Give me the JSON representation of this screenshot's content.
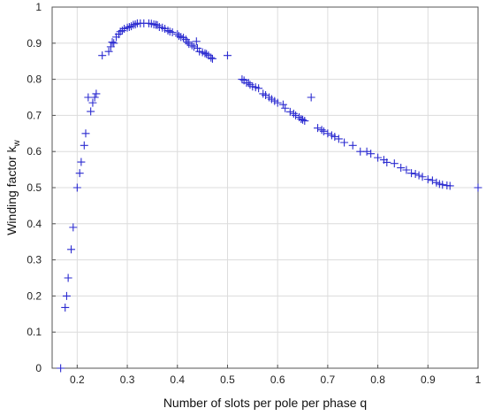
{
  "chart_data": {
    "type": "scatter",
    "xlabel": "Number of slots per pole per phase q",
    "ylabel_main": "Winding factor k",
    "ylabel_sub": "w",
    "xlim": [
      0.15,
      1.0
    ],
    "ylim": [
      0,
      1.0
    ],
    "grid": true,
    "marker": "+",
    "marker_color": "#2b2bd0",
    "x_ticks": [
      0.2,
      0.3,
      0.4,
      0.5,
      0.6,
      0.7,
      0.8,
      0.9,
      1.0
    ],
    "x_tick_labels": [
      "0.2",
      "0.3",
      "0.4",
      "0.5",
      "0.6",
      "0.7",
      "0.8",
      "0.9",
      "1"
    ],
    "y_ticks": [
      0,
      0.1,
      0.2,
      0.3,
      0.4,
      0.5,
      0.6,
      0.7,
      0.8,
      0.9,
      1.0
    ],
    "y_tick_labels": [
      "0",
      "0.1",
      "0.2",
      "0.3",
      "0.4",
      "0.5",
      "0.6",
      "0.7",
      "0.8",
      "0.9",
      "1"
    ],
    "points": [
      [
        0.167,
        0.0
      ],
      [
        0.176,
        0.168
      ],
      [
        0.179,
        0.2
      ],
      [
        0.182,
        0.25
      ],
      [
        0.188,
        0.329
      ],
      [
        0.192,
        0.39
      ],
      [
        0.2,
        0.5
      ],
      [
        0.205,
        0.54
      ],
      [
        0.208,
        0.571
      ],
      [
        0.214,
        0.617
      ],
      [
        0.217,
        0.65
      ],
      [
        0.222,
        0.75
      ],
      [
        0.227,
        0.711
      ],
      [
        0.231,
        0.735
      ],
      [
        0.235,
        0.75
      ],
      [
        0.238,
        0.76
      ],
      [
        0.25,
        0.866
      ],
      [
        0.263,
        0.877
      ],
      [
        0.267,
        0.89
      ],
      [
        0.27,
        0.903
      ],
      [
        0.273,
        0.9
      ],
      [
        0.278,
        0.917
      ],
      [
        0.283,
        0.925
      ],
      [
        0.286,
        0.932
      ],
      [
        0.29,
        0.935
      ],
      [
        0.294,
        0.94
      ],
      [
        0.3,
        0.943
      ],
      [
        0.304,
        0.945
      ],
      [
        0.308,
        0.947
      ],
      [
        0.312,
        0.951
      ],
      [
        0.316,
        0.952
      ],
      [
        0.32,
        0.955
      ],
      [
        0.326,
        0.955
      ],
      [
        0.333,
        0.955
      ],
      [
        0.343,
        0.955
      ],
      [
        0.348,
        0.954
      ],
      [
        0.353,
        0.952
      ],
      [
        0.357,
        0.951
      ],
      [
        0.36,
        0.95
      ],
      [
        0.364,
        0.945
      ],
      [
        0.37,
        0.943
      ],
      [
        0.375,
        0.94
      ],
      [
        0.381,
        0.935
      ],
      [
        0.385,
        0.932
      ],
      [
        0.39,
        0.93
      ],
      [
        0.4,
        0.925
      ],
      [
        0.403,
        0.92
      ],
      [
        0.407,
        0.917
      ],
      [
        0.412,
        0.915
      ],
      [
        0.417,
        0.91
      ],
      [
        0.42,
        0.903
      ],
      [
        0.423,
        0.898
      ],
      [
        0.429,
        0.894
      ],
      [
        0.433,
        0.89
      ],
      [
        0.438,
        0.905
      ],
      [
        0.44,
        0.886
      ],
      [
        0.444,
        0.877
      ],
      [
        0.45,
        0.875
      ],
      [
        0.455,
        0.872
      ],
      [
        0.458,
        0.87
      ],
      [
        0.462,
        0.866
      ],
      [
        0.467,
        0.86
      ],
      [
        0.47,
        0.857
      ],
      [
        0.5,
        0.866
      ],
      [
        0.529,
        0.8
      ],
      [
        0.533,
        0.797
      ],
      [
        0.538,
        0.79
      ],
      [
        0.542,
        0.79
      ],
      [
        0.545,
        0.785
      ],
      [
        0.55,
        0.78
      ],
      [
        0.556,
        0.778
      ],
      [
        0.562,
        0.775
      ],
      [
        0.571,
        0.76
      ],
      [
        0.576,
        0.756
      ],
      [
        0.583,
        0.75
      ],
      [
        0.588,
        0.745
      ],
      [
        0.594,
        0.74
      ],
      [
        0.6,
        0.735
      ],
      [
        0.611,
        0.73
      ],
      [
        0.615,
        0.72
      ],
      [
        0.625,
        0.71
      ],
      [
        0.632,
        0.705
      ],
      [
        0.636,
        0.7
      ],
      [
        0.643,
        0.695
      ],
      [
        0.647,
        0.69
      ],
      [
        0.65,
        0.688
      ],
      [
        0.654,
        0.685
      ],
      [
        0.667,
        0.75
      ],
      [
        0.68,
        0.665
      ],
      [
        0.688,
        0.66
      ],
      [
        0.692,
        0.656
      ],
      [
        0.7,
        0.65
      ],
      [
        0.708,
        0.645
      ],
      [
        0.714,
        0.641
      ],
      [
        0.722,
        0.635
      ],
      [
        0.733,
        0.625
      ],
      [
        0.75,
        0.617
      ],
      [
        0.765,
        0.6
      ],
      [
        0.778,
        0.6
      ],
      [
        0.786,
        0.594
      ],
      [
        0.8,
        0.583
      ],
      [
        0.812,
        0.577
      ],
      [
        0.818,
        0.57
      ],
      [
        0.833,
        0.567
      ],
      [
        0.846,
        0.555
      ],
      [
        0.857,
        0.549
      ],
      [
        0.867,
        0.54
      ],
      [
        0.875,
        0.538
      ],
      [
        0.882,
        0.534
      ],
      [
        0.889,
        0.53
      ],
      [
        0.9,
        0.523
      ],
      [
        0.909,
        0.52
      ],
      [
        0.917,
        0.514
      ],
      [
        0.923,
        0.51
      ],
      [
        0.929,
        0.508
      ],
      [
        0.938,
        0.506
      ],
      [
        0.944,
        0.505
      ],
      [
        1.0,
        0.5
      ]
    ]
  }
}
